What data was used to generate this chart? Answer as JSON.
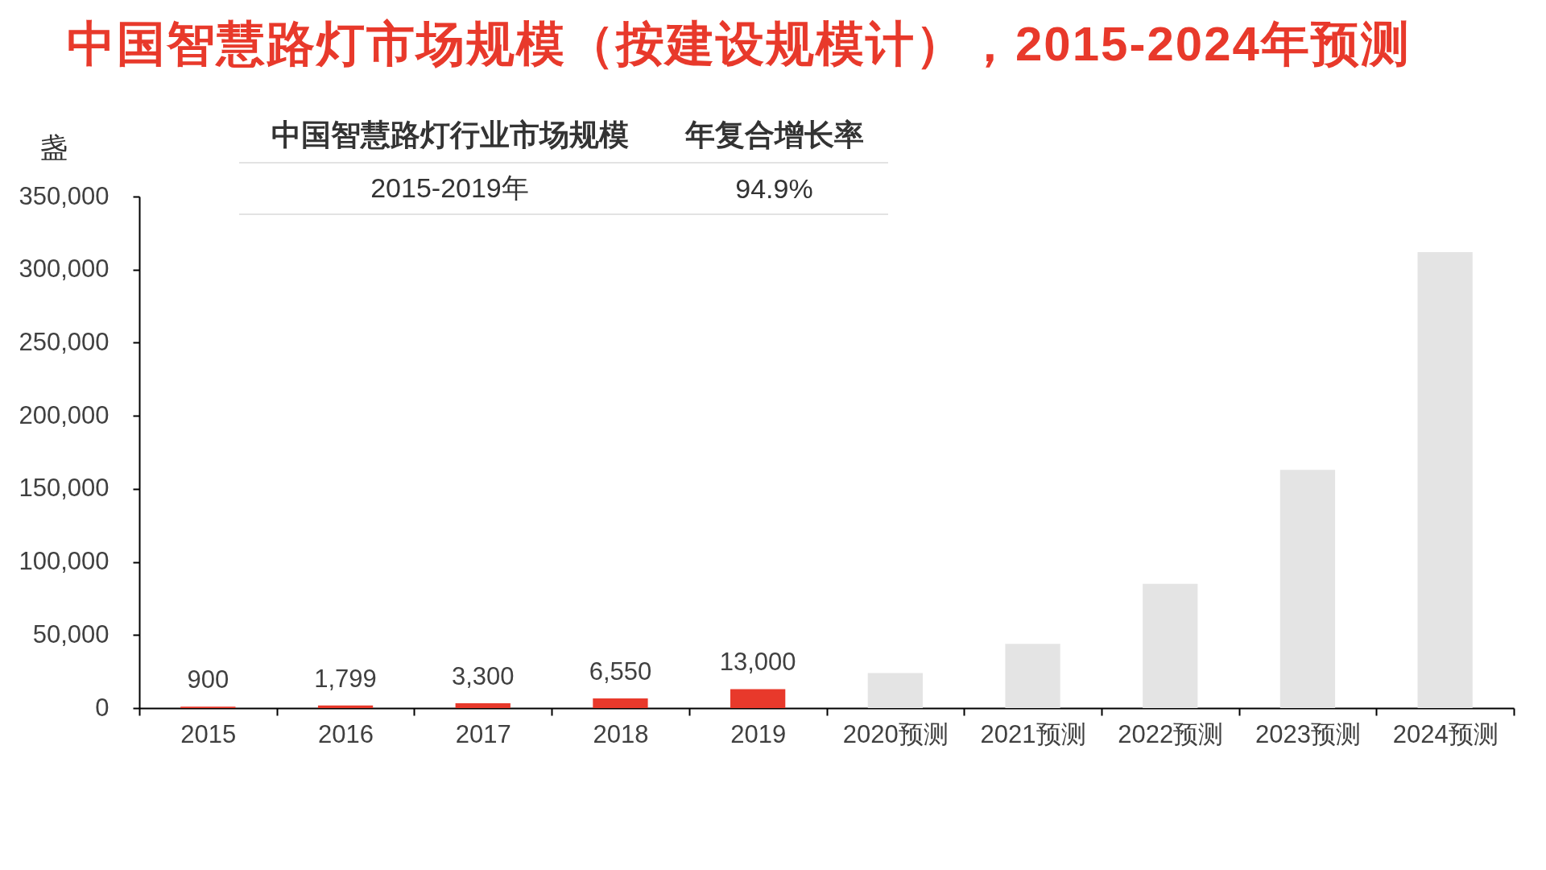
{
  "chart_data": {
    "type": "bar",
    "title": "中国智慧路灯市场规模（按建设规模计），2015-2024年预测",
    "ylabel": "盏",
    "categories": [
      "2015",
      "2016",
      "2017",
      "2018",
      "2019",
      "2020预测",
      "2021预测",
      "2022预测",
      "2023预测",
      "2024预测"
    ],
    "values": [
      900,
      1799,
      3300,
      6550,
      13000,
      24000,
      44000,
      85000,
      163000,
      312000
    ],
    "colors": [
      "#e8392b",
      "#e8392b",
      "#e8392b",
      "#e8392b",
      "#e8392b",
      "#e4e4e4",
      "#e4e4e4",
      "#e4e4e4",
      "#e4e4e4",
      "#e4e4e4"
    ],
    "value_labels": [
      "900",
      "1,799",
      "3,300",
      "6,550",
      "13,000",
      null,
      null,
      null,
      null,
      null
    ],
    "ylim": [
      0,
      350000
    ],
    "yticks": [
      0,
      {
        "value": 50000,
        "label": "50,000"
      },
      {
        "value": 100000,
        "label": "100,000"
      },
      {
        "value": 150000,
        "label": "150,000"
      },
      {
        "value": 200000,
        "label": "200,000"
      },
      {
        "value": 250000,
        "label": "250,000"
      },
      {
        "value": 300000,
        "label": "300,000"
      },
      {
        "value": 350000,
        "label": "350,000"
      }
    ],
    "annotations": [
      "中国智慧路灯行业市场规模",
      "年复合增长率",
      "2015-2019年",
      "94.9%"
    ]
  }
}
